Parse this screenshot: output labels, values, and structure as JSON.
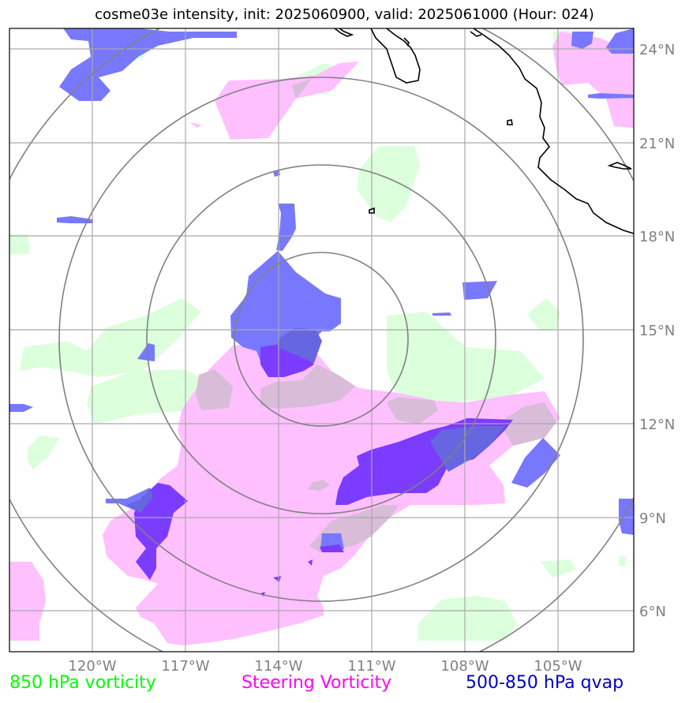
{
  "title": "cosme03e intensity, init: 2025060900, valid: 2025061000 (Hour: 024)",
  "lon_labels": [
    "120°W",
    "117°W",
    "114°W",
    "111°W",
    "108°W",
    "105°W"
  ],
  "lat_labels": [
    "24°N",
    "21°N",
    "18°N",
    "15°N",
    "12°N",
    "9°N",
    "6°N"
  ],
  "legend": {
    "vort850": "850 hPa vorticity",
    "steering": "Steering Vorticity",
    "qvap": "500-850 hPa qvap"
  },
  "colors": {
    "vort850": "#00ff00",
    "steering": "#ff00ff",
    "qvap": "#0000cc",
    "vort850_fill": "#dcffdc",
    "steering_fill": "#ffc0ff",
    "qvap_fill": "#7878ff",
    "overlap_fill": "#7c3cff"
  }
}
